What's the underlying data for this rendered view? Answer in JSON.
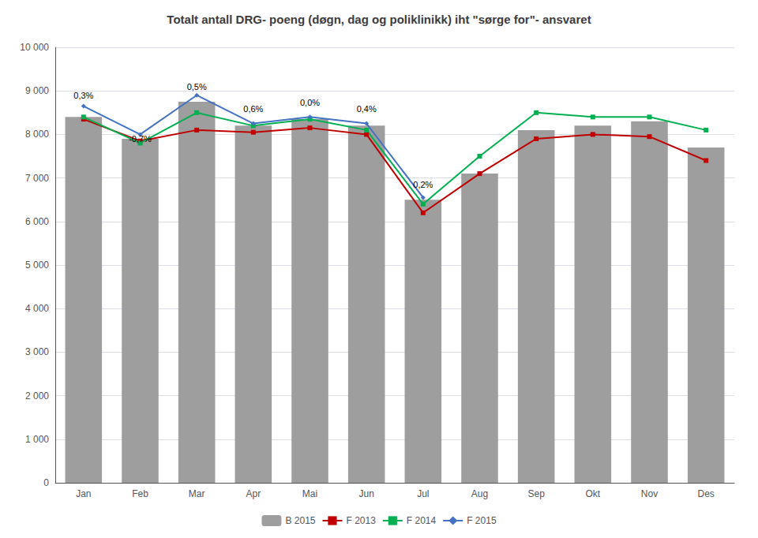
{
  "chart_data": {
    "type": "bar",
    "title": "Totalt antall DRG- poeng (døgn, dag og poliklinikk) iht \"sørge for\"- ansvaret",
    "categories": [
      "Jan",
      "Feb",
      "Mar",
      "Apr",
      "Mai",
      "Jun",
      "Jul",
      "Aug",
      "Sep",
      "Okt",
      "Nov",
      "Des"
    ],
    "series": [
      {
        "name": "B 2015",
        "type": "bar",
        "color": "#9E9E9E",
        "values": [
          8400,
          7900,
          8750,
          8200,
          8350,
          8200,
          6500,
          7100,
          8100,
          8200,
          8300,
          7700
        ]
      },
      {
        "name": "F 2013",
        "type": "line",
        "color": "#C00000",
        "marker": "square",
        "values": [
          8350,
          7850,
          8100,
          8050,
          8150,
          8000,
          6200,
          7100,
          7900,
          8000,
          7950,
          7400
        ]
      },
      {
        "name": "F 2014",
        "type": "line",
        "color": "#00B050",
        "marker": "square",
        "values": [
          8400,
          7800,
          8500,
          8200,
          8350,
          8100,
          6400,
          7500,
          8500,
          8400,
          8400,
          8100
        ]
      },
      {
        "name": "F 2015",
        "type": "line",
        "color": "#4472C4",
        "marker": "diamond",
        "values": [
          8650,
          8000,
          8900,
          8250,
          8400,
          8250,
          6550,
          null,
          null,
          null,
          null,
          null
        ]
      }
    ],
    "annotations": [
      {
        "text": "0,3%",
        "x": "Jan",
        "y": 8700
      },
      {
        "text": "-0,7%",
        "x": "Feb",
        "y": 7700
      },
      {
        "text": "0,5%",
        "x": "Mar",
        "y": 8900
      },
      {
        "text": "0,6%",
        "x": "Apr",
        "y": 8400
      },
      {
        "text": "0,0%",
        "x": "Mai",
        "y": 8550
      },
      {
        "text": "0,4%",
        "x": "Jun",
        "y": 8400
      },
      {
        "text": "0,2%",
        "x": "Jul",
        "y": 6650
      }
    ],
    "ylim": [
      0,
      10000
    ],
    "yticks": [
      0,
      {
        "value": 1000,
        "label": "1 000"
      },
      {
        "value": 2000,
        "label": "2 000"
      },
      {
        "value": 3000,
        "label": "3 000"
      },
      {
        "value": 4000,
        "label": "4 000"
      },
      {
        "value": 5000,
        "label": "5 000"
      },
      {
        "value": 6000,
        "label": "6 000"
      },
      {
        "value": 7000,
        "label": "7 000"
      },
      {
        "value": 8000,
        "label": "8 000"
      },
      {
        "value": 9000,
        "label": "9 000"
      },
      {
        "value": 10000,
        "label": "10 000"
      }
    ],
    "grid": true,
    "legend": "bottom"
  }
}
